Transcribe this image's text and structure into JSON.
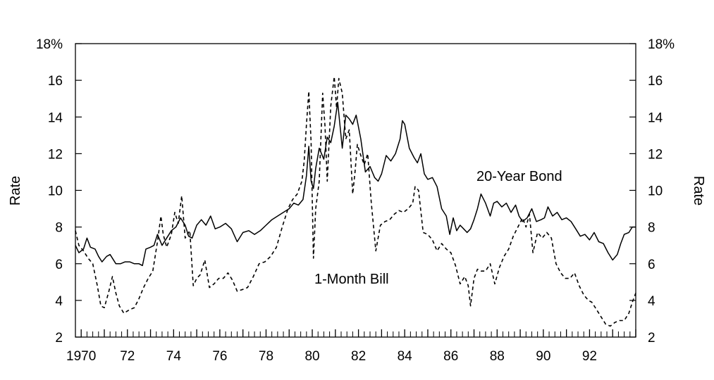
{
  "chart_data": {
    "type": "line",
    "title": "",
    "xlabel": "",
    "ylabel_left": "Rate",
    "ylabel_right": "Rate",
    "xlim": [
      1969.75,
      1994.0
    ],
    "ylim": [
      2,
      18
    ],
    "x_tick_values": [
      1970,
      1972,
      1974,
      1976,
      1978,
      1980,
      1982,
      1984,
      1986,
      1988,
      1990,
      1992
    ],
    "x_tick_labels": [
      "1970",
      "72",
      "74",
      "76",
      "78",
      "80",
      "82",
      "84",
      "86",
      "88",
      "90",
      "92"
    ],
    "y_tick_values": [
      2,
      4,
      6,
      8,
      10,
      12,
      14,
      16,
      18
    ],
    "y_tick_labels_left": [
      "2",
      "4",
      "6",
      "8",
      "10",
      "12",
      "14",
      "16",
      "18%"
    ],
    "y_tick_labels_right": [
      "2",
      "4",
      "6",
      "8",
      "10",
      "12",
      "14",
      "16",
      "18%"
    ],
    "grid": false,
    "legend": "none",
    "series": [
      {
        "name": "20-Year Bond",
        "style": "solid",
        "color": "#000000",
        "x": [
          1969.75,
          1969.9,
          1970.1,
          1970.25,
          1970.4,
          1970.6,
          1970.75,
          1970.9,
          1971.1,
          1971.25,
          1971.5,
          1971.7,
          1971.9,
          1972.1,
          1972.3,
          1972.5,
          1972.65,
          1972.8,
          1973.0,
          1973.15,
          1973.3,
          1973.5,
          1973.7,
          1973.9,
          1974.1,
          1974.3,
          1974.5,
          1974.65,
          1974.8,
          1975.0,
          1975.2,
          1975.4,
          1975.6,
          1975.8,
          1976.0,
          1976.25,
          1976.5,
          1976.75,
          1977.0,
          1977.25,
          1977.5,
          1977.75,
          1978.0,
          1978.25,
          1978.5,
          1978.75,
          1979.0,
          1979.2,
          1979.4,
          1979.6,
          1979.75,
          1979.85,
          1979.95,
          1980.05,
          1980.15,
          1980.3,
          1980.5,
          1980.65,
          1980.8,
          1980.95,
          1981.1,
          1981.3,
          1981.45,
          1981.6,
          1981.75,
          1981.9,
          1982.1,
          1982.3,
          1982.5,
          1982.7,
          1982.85,
          1983.0,
          1983.2,
          1983.4,
          1983.6,
          1983.8,
          1983.9,
          1984.0,
          1984.2,
          1984.4,
          1984.55,
          1984.7,
          1984.85,
          1985.0,
          1985.2,
          1985.4,
          1985.6,
          1985.8,
          1985.95,
          1986.1,
          1986.25,
          1986.4,
          1986.55,
          1986.7,
          1986.85,
          1987.0,
          1987.15,
          1987.3,
          1987.5,
          1987.7,
          1987.85,
          1988.0,
          1988.2,
          1988.4,
          1988.6,
          1988.8,
          1988.95,
          1989.1,
          1989.3,
          1989.5,
          1989.7,
          1989.9,
          1990.05,
          1990.2,
          1990.4,
          1990.6,
          1990.8,
          1991.0,
          1991.2,
          1991.4,
          1991.6,
          1991.8,
          1992.0,
          1992.2,
          1992.4,
          1992.6,
          1992.8,
          1993.0,
          1993.2,
          1993.35,
          1993.5,
          1993.7,
          1993.85,
          1994.0
        ],
        "y": [
          7.0,
          6.6,
          6.8,
          7.4,
          6.9,
          6.8,
          6.4,
          6.1,
          6.4,
          6.5,
          6.0,
          6.0,
          6.1,
          6.1,
          6.0,
          6.0,
          5.9,
          6.8,
          6.9,
          7.0,
          7.6,
          7.0,
          7.4,
          7.8,
          8.0,
          8.5,
          8.1,
          7.5,
          7.4,
          8.1,
          8.4,
          8.1,
          8.6,
          7.9,
          8.0,
          8.2,
          7.9,
          7.2,
          7.7,
          7.8,
          7.6,
          7.8,
          8.1,
          8.4,
          8.6,
          8.8,
          9.0,
          9.3,
          9.2,
          9.5,
          10.8,
          12.4,
          10.5,
          10.1,
          11.2,
          12.3,
          11.7,
          12.9,
          12.6,
          13.5,
          14.8,
          12.3,
          14.1,
          13.9,
          13.6,
          14.1,
          12.8,
          11.0,
          11.3,
          10.7,
          10.5,
          10.9,
          11.9,
          11.6,
          12.0,
          12.8,
          13.8,
          13.6,
          12.3,
          11.8,
          11.5,
          12.0,
          10.9,
          10.6,
          10.7,
          10.2,
          9.0,
          8.6,
          7.6,
          8.5,
          7.8,
          8.1,
          7.9,
          7.7,
          7.9,
          8.4,
          9.0,
          9.8,
          9.3,
          8.6,
          9.3,
          9.4,
          9.1,
          9.3,
          8.8,
          9.2,
          8.6,
          8.3,
          8.5,
          9.0,
          8.3,
          8.4,
          8.5,
          9.1,
          8.6,
          8.8,
          8.4,
          8.5,
          8.3,
          7.9,
          7.5,
          7.6,
          7.3,
          7.7,
          7.2,
          7.1,
          6.6,
          6.2,
          6.5,
          7.1,
          7.6,
          7.7,
          8.0,
          8.0
        ],
        "label": "20-Year Bond"
      },
      {
        "name": "1-Month Bill",
        "style": "dashed",
        "color": "#000000",
        "x": [
          1969.75,
          1969.9,
          1970.1,
          1970.3,
          1970.5,
          1970.7,
          1970.85,
          1971.0,
          1971.2,
          1971.35,
          1971.5,
          1971.65,
          1971.85,
          1972.1,
          1972.3,
          1972.5,
          1972.7,
          1972.9,
          1973.1,
          1973.3,
          1973.45,
          1973.55,
          1973.7,
          1973.9,
          1974.05,
          1974.2,
          1974.35,
          1974.5,
          1974.7,
          1974.85,
          1975.0,
          1975.15,
          1975.35,
          1975.55,
          1975.75,
          1975.95,
          1976.15,
          1976.35,
          1976.55,
          1976.75,
          1977.0,
          1977.2,
          1977.45,
          1977.7,
          1977.95,
          1978.2,
          1978.45,
          1978.7,
          1978.95,
          1979.15,
          1979.35,
          1979.55,
          1979.65,
          1979.75,
          1979.85,
          1979.95,
          1980.05,
          1980.15,
          1980.3,
          1980.45,
          1980.55,
          1980.65,
          1980.8,
          1980.95,
          1981.05,
          1981.15,
          1981.3,
          1981.45,
          1981.6,
          1981.75,
          1981.85,
          1981.95,
          1982.1,
          1982.25,
          1982.4,
          1982.55,
          1982.75,
          1982.95,
          1983.15,
          1983.35,
          1983.55,
          1983.75,
          1983.95,
          1984.15,
          1984.35,
          1984.45,
          1984.6,
          1984.8,
          1985.0,
          1985.2,
          1985.4,
          1985.6,
          1985.8,
          1986.0,
          1986.2,
          1986.4,
          1986.6,
          1986.75,
          1986.85,
          1987.0,
          1987.15,
          1987.3,
          1987.5,
          1987.7,
          1987.9,
          1988.1,
          1988.3,
          1988.5,
          1988.7,
          1988.9,
          1989.1,
          1989.25,
          1989.4,
          1989.55,
          1989.75,
          1989.95,
          1990.15,
          1990.35,
          1990.55,
          1990.75,
          1990.95,
          1991.15,
          1991.35,
          1991.55,
          1991.75,
          1991.95,
          1992.1,
          1992.3,
          1992.5,
          1992.7,
          1992.9,
          1993.1,
          1993.3,
          1993.5,
          1993.7,
          1993.85,
          1994.0
        ],
        "y": [
          7.8,
          7.0,
          6.7,
          6.3,
          6.0,
          4.8,
          3.7,
          3.6,
          4.5,
          5.3,
          4.4,
          3.7,
          3.3,
          3.5,
          3.6,
          4.1,
          4.7,
          5.2,
          5.6,
          7.2,
          8.6,
          7.6,
          6.9,
          7.6,
          8.8,
          8.2,
          9.7,
          7.4,
          7.8,
          4.8,
          5.2,
          5.4,
          6.2,
          4.7,
          4.9,
          5.2,
          5.2,
          5.5,
          5.1,
          4.5,
          4.6,
          4.7,
          5.3,
          6.0,
          6.1,
          6.4,
          6.9,
          8.0,
          9.0,
          9.5,
          9.8,
          10.5,
          11.6,
          13.6,
          15.4,
          12.6,
          6.3,
          9.0,
          10.5,
          15.3,
          13.5,
          10.5,
          14.6,
          16.2,
          14.5,
          16.1,
          15.3,
          12.8,
          13.3,
          9.8,
          11.0,
          12.5,
          11.9,
          11.4,
          12.0,
          9.4,
          6.7,
          8.1,
          8.3,
          8.4,
          8.7,
          8.9,
          8.8,
          9.0,
          9.3,
          10.2,
          10.0,
          7.7,
          7.6,
          7.3,
          6.7,
          7.1,
          6.8,
          6.6,
          5.9,
          4.9,
          5.3,
          4.8,
          3.7,
          5.2,
          5.7,
          5.6,
          5.6,
          6.0,
          4.9,
          5.8,
          6.4,
          6.8,
          7.5,
          8.0,
          8.5,
          8.0,
          8.7,
          6.6,
          7.7,
          7.4,
          7.7,
          7.4,
          6.0,
          5.5,
          5.2,
          5.2,
          5.5,
          4.8,
          4.3,
          4.0,
          3.9,
          3.5,
          3.1,
          2.7,
          2.6,
          2.8,
          2.9,
          2.9,
          3.3,
          3.9,
          4.4
        ],
        "label": "1-Month Bill"
      }
    ]
  }
}
